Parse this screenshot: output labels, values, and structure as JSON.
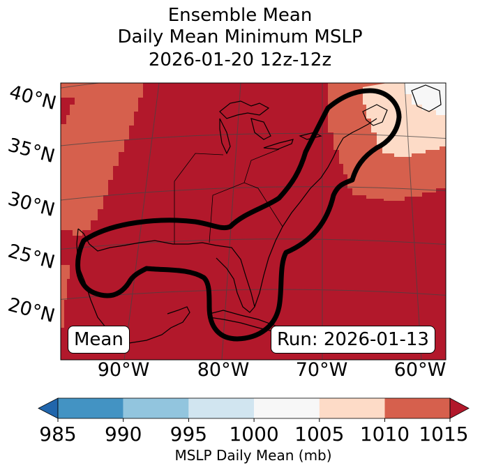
{
  "title": {
    "line1": "Ensemble Mean",
    "line2": "Daily Mean Minimum MSLP",
    "line3": "2026-01-20 12z-12z"
  },
  "map": {
    "lat_labels": [
      "40°N",
      "35°N",
      "30°N",
      "25°N",
      "20°N"
    ],
    "lon_labels": [
      "90°W",
      "80°W",
      "70°W",
      "60°W"
    ],
    "mean_label": "Mean",
    "run_label": "Run: 2026-01-13"
  },
  "colorbar": {
    "ticks": [
      "985",
      "990",
      "995",
      "1000",
      "1005",
      "1010",
      "1015"
    ],
    "colors": [
      "#2166ac",
      "#4393c3",
      "#92c5de",
      "#d1e5f0",
      "#f7f7f7",
      "#fddbc7",
      "#d6604d",
      "#b2182b"
    ],
    "label": "MSLP Daily Mean (mb)"
  }
}
